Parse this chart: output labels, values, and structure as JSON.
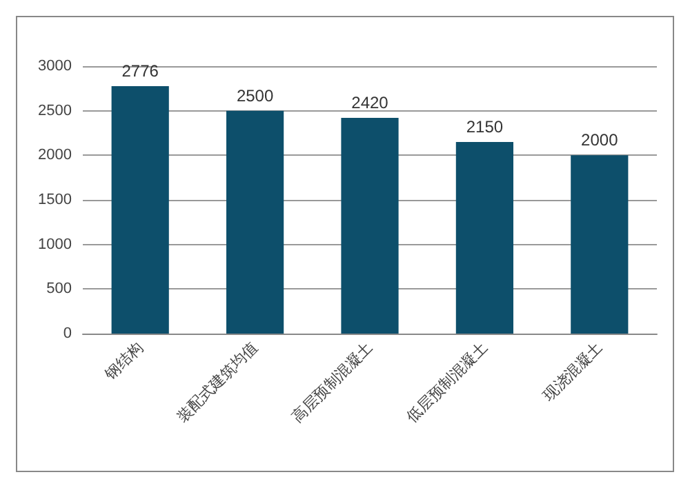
{
  "chart_data": {
    "type": "bar",
    "categories": [
      "钢结构",
      "装配式建筑均值",
      "高层预制混凝土",
      "低层预制混凝土",
      "现浇混凝土"
    ],
    "values": [
      2776,
      2500,
      2420,
      2150,
      2000
    ],
    "color": "#0d4f6b",
    "ylim": [
      0,
      3000
    ],
    "yticks": [
      0,
      500,
      1000,
      1500,
      2000,
      2500,
      3000
    ],
    "grid": "y",
    "data_labels": true
  }
}
